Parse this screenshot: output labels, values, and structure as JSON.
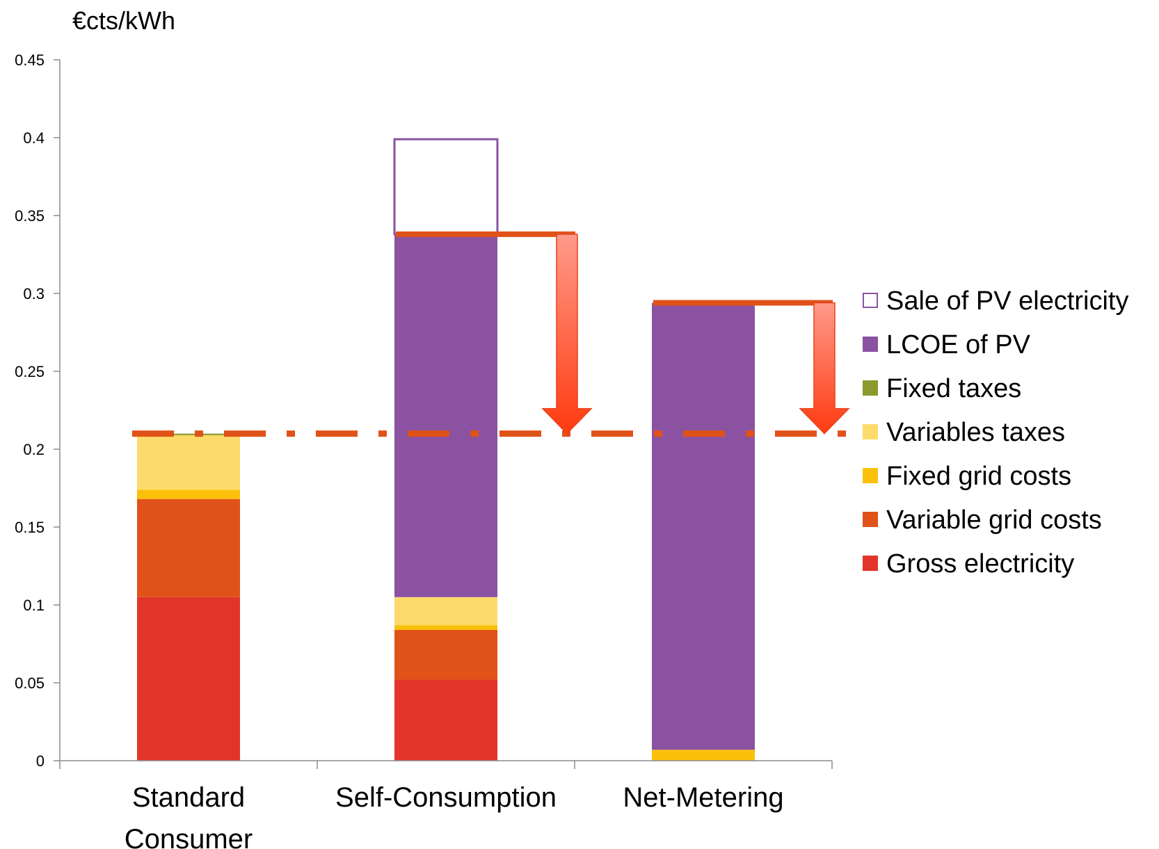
{
  "chart_data": {
    "type": "bar",
    "stacked": true,
    "ylabel": "€cts/kWh",
    "xlabel": "",
    "ylim": [
      0,
      0.45
    ],
    "yticks": [
      "0",
      "0.05",
      "0.1",
      "0.15",
      "0.2",
      "0.25",
      "0.3",
      "0.35",
      "0.4",
      "0.45"
    ],
    "categories": [
      [
        "Standard",
        "Consumer"
      ],
      [
        "Self-Consumption"
      ],
      [
        "Net-Metering"
      ]
    ],
    "series": [
      {
        "name": "Gross electricity",
        "color": "#e3342a",
        "values": [
          0.105,
          0.052,
          0
        ]
      },
      {
        "name": "Variable grid costs",
        "color": "#e05218",
        "values": [
          0.063,
          0.032,
          0
        ]
      },
      {
        "name": "Fixed grid costs",
        "color": "#fbc10a",
        "values": [
          0.006,
          0.003,
          0.007
        ]
      },
      {
        "name": "Variables taxes",
        "color": "#fddb6a",
        "values": [
          0.035,
          0.018,
          0
        ]
      },
      {
        "name": "Fixed taxes",
        "color": "#8a9a2c",
        "values": [
          0.001,
          0,
          0
        ]
      },
      {
        "name": "LCOE of PV",
        "color": "#8b52a1",
        "values": [
          0,
          0.233,
          0.287
        ]
      },
      {
        "name": "Sale of PV electricity",
        "color": "#8b52a1",
        "outline": true,
        "values": [
          0,
          0.061,
          0
        ]
      }
    ],
    "reference_line": {
      "value": 0.21,
      "style": "dash-dot",
      "color": "#e05218"
    },
    "arrows": [
      {
        "from": 0.338,
        "to": 0.21,
        "category_index": 1
      },
      {
        "from": 0.294,
        "to": 0.21,
        "category_index": 2
      }
    ],
    "legend_position": "right",
    "legend_order": [
      "Sale of PV electricity",
      "LCOE of PV",
      "Fixed taxes",
      "Variables taxes",
      "Fixed grid costs",
      "Variable grid costs",
      "Gross electricity"
    ],
    "grid": false
  }
}
